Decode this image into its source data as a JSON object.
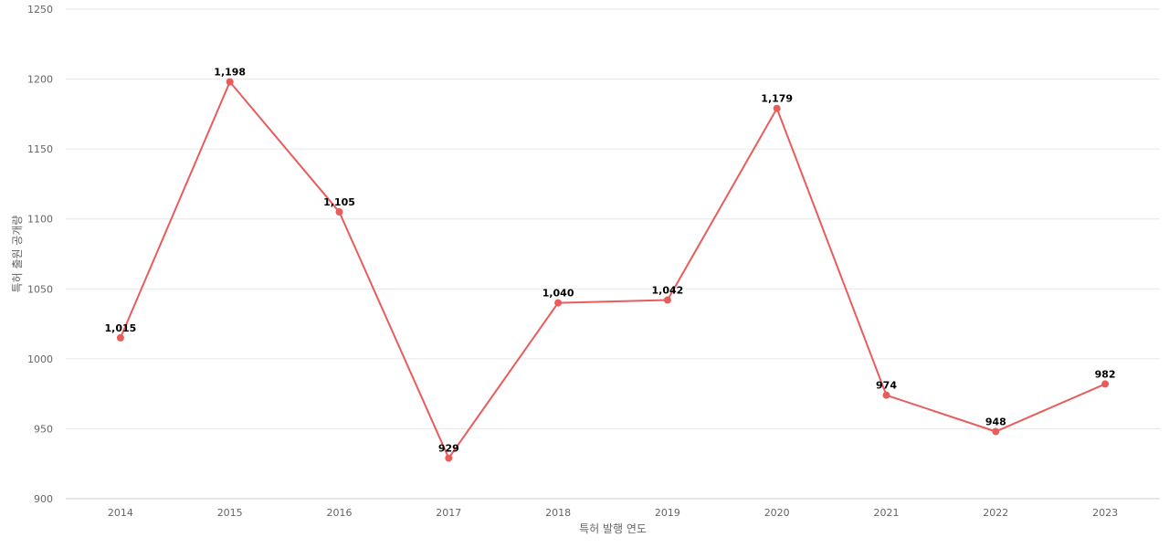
{
  "chart_data": {
    "type": "line",
    "xlabel": "특허 발행 연도",
    "ylabel": "특허 출원 공개량",
    "x": [
      "2014",
      "2015",
      "2016",
      "2017",
      "2018",
      "2019",
      "2020",
      "2021",
      "2022",
      "2023"
    ],
    "series": [
      {
        "values": [
          1015,
          1198,
          1105,
          929,
          1040,
          1042,
          1179,
          974,
          948,
          982
        ],
        "labels": [
          "1,015",
          "1,198",
          "1,105",
          "929",
          "1,040",
          "1,042",
          "1,179",
          "974",
          "948",
          "982"
        ],
        "color": "#e85c5c"
      }
    ],
    "yticks": [
      "1250",
      "1200",
      "1150",
      "1100",
      "1050",
      "1000",
      "950",
      "900"
    ],
    "ylim": [
      900,
      1250
    ],
    "grid": true,
    "legend": "none"
  }
}
